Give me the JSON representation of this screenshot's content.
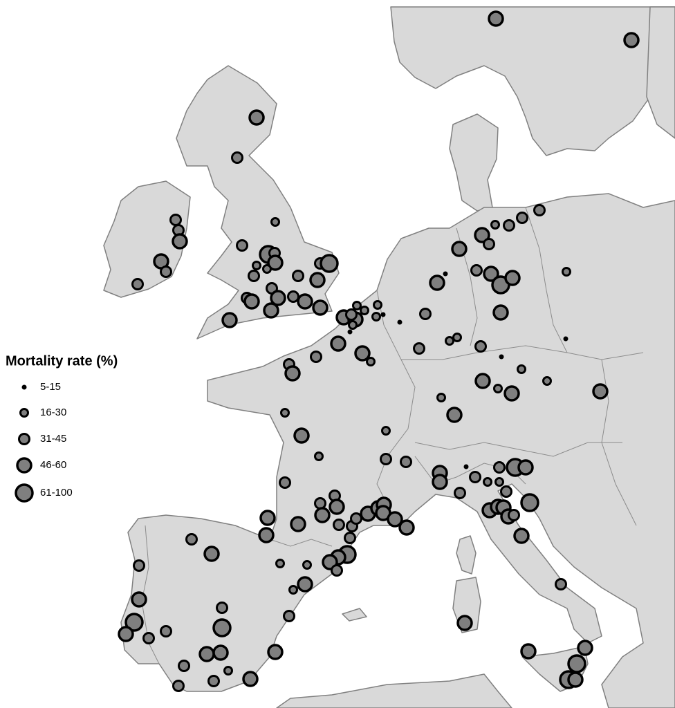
{
  "legend": {
    "title": "Mortality rate (%)",
    "items": [
      "5-15",
      "16-30",
      "31-45",
      "46-60",
      "61-100"
    ]
  }
}
